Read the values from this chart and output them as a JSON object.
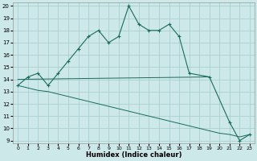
{
  "xlabel": "Humidex (Indice chaleur)",
  "background_color": "#cce8e8",
  "grid_color": "#aacece",
  "line_color": "#1a6b5a",
  "xlim": [
    -0.5,
    23.5
  ],
  "ylim": [
    8.8,
    20.3
  ],
  "xticks": [
    0,
    1,
    2,
    3,
    4,
    5,
    6,
    7,
    8,
    9,
    10,
    11,
    12,
    13,
    14,
    15,
    16,
    17,
    18,
    19,
    20,
    21,
    22,
    23
  ],
  "yticks": [
    9,
    10,
    11,
    12,
    13,
    14,
    15,
    16,
    17,
    18,
    19,
    20
  ],
  "line1_x": [
    0,
    1,
    2,
    3,
    4,
    5,
    6,
    7,
    8,
    9,
    10,
    11,
    12,
    13,
    14,
    15,
    16,
    17,
    19,
    21,
    22,
    23
  ],
  "line1_y": [
    13.5,
    14.2,
    14.5,
    13.5,
    14.5,
    15.5,
    16.5,
    17.5,
    18.0,
    17.0,
    17.5,
    20.0,
    18.5,
    18.0,
    18.0,
    18.5,
    17.5,
    14.5,
    14.2,
    10.5,
    9.0,
    9.5
  ],
  "line2_x": [
    0,
    19
  ],
  "line2_y": [
    14.0,
    14.2
  ],
  "line3_full_x": [
    0,
    1,
    2,
    3,
    4,
    5,
    6,
    7,
    8,
    9,
    10,
    11,
    12,
    13,
    14,
    15,
    16,
    17,
    18,
    19,
    20,
    21,
    22,
    23
  ],
  "line3_full_y": [
    13.5,
    13.3,
    13.1,
    13.0,
    12.8,
    12.6,
    12.4,
    12.2,
    12.0,
    11.8,
    11.6,
    11.4,
    11.2,
    11.0,
    10.8,
    10.6,
    10.4,
    10.2,
    10.0,
    9.8,
    9.6,
    9.5,
    9.3,
    9.5
  ]
}
